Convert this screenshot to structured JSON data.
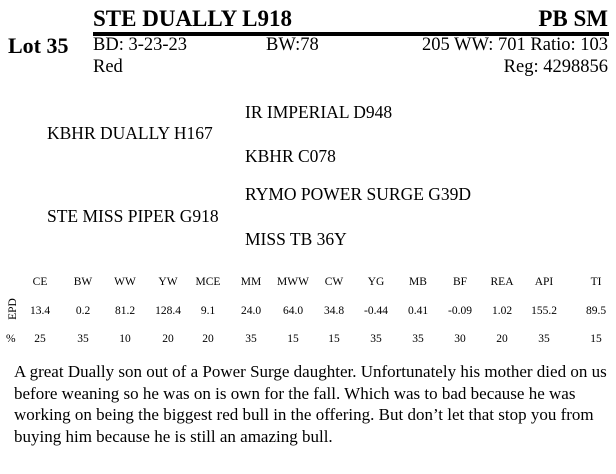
{
  "header": {
    "name": "STE DUALLY L918",
    "breed": "PB SM",
    "lot": "Lot 35",
    "birth_date": "BD: 3-23-23",
    "birth_weight": "BW:78",
    "weaning": "205 WW: 701 Ratio: 103",
    "color": "Red",
    "registration": "Reg: 4298856"
  },
  "pedigree": {
    "sire": "KBHR DUALLY H167",
    "sire_sire": "IR IMPERIAL D948",
    "sire_dam": "KBHR C078",
    "dam": "STE MISS PIPER G918",
    "dam_sire": "RYMO POWER SURGE G39D",
    "dam_dam": "MISS TB 36Y"
  },
  "epd_table": {
    "row_label_epd": "EPD",
    "row_label_pct": "%",
    "columns": [
      {
        "trait": "CE",
        "epd": "13.4",
        "pct": "25"
      },
      {
        "trait": "BW",
        "epd": "0.2",
        "pct": "35"
      },
      {
        "trait": "WW",
        "epd": "81.2",
        "pct": "10"
      },
      {
        "trait": "YW",
        "epd": "128.4",
        "pct": "20"
      },
      {
        "trait": "MCE",
        "epd": "9.1",
        "pct": "20"
      },
      {
        "trait": "MM",
        "epd": "24.0",
        "pct": "35"
      },
      {
        "trait": "MWW",
        "epd": "64.0",
        "pct": "15"
      },
      {
        "trait": "CW",
        "epd": "34.8",
        "pct": "15"
      },
      {
        "trait": "YG",
        "epd": "-0.44",
        "pct": "35"
      },
      {
        "trait": "MB",
        "epd": "0.41",
        "pct": "35"
      },
      {
        "trait": "BF",
        "epd": "-0.09",
        "pct": "30"
      },
      {
        "trait": "REA",
        "epd": "1.02",
        "pct": "20"
      },
      {
        "trait": "API",
        "epd": "155.2",
        "pct": "35"
      },
      {
        "trait": "TI",
        "epd": "89.5",
        "pct": "15"
      }
    ]
  },
  "description": "A great Dually son out of a Power Surge daughter.  Unfortunately his mother died on us before weaning so he was on is own for the fall.  Which was to bad because he was working on being the biggest red bull in the offering.  But don’t let that stop you from buying him because he is still an amazing bull."
}
